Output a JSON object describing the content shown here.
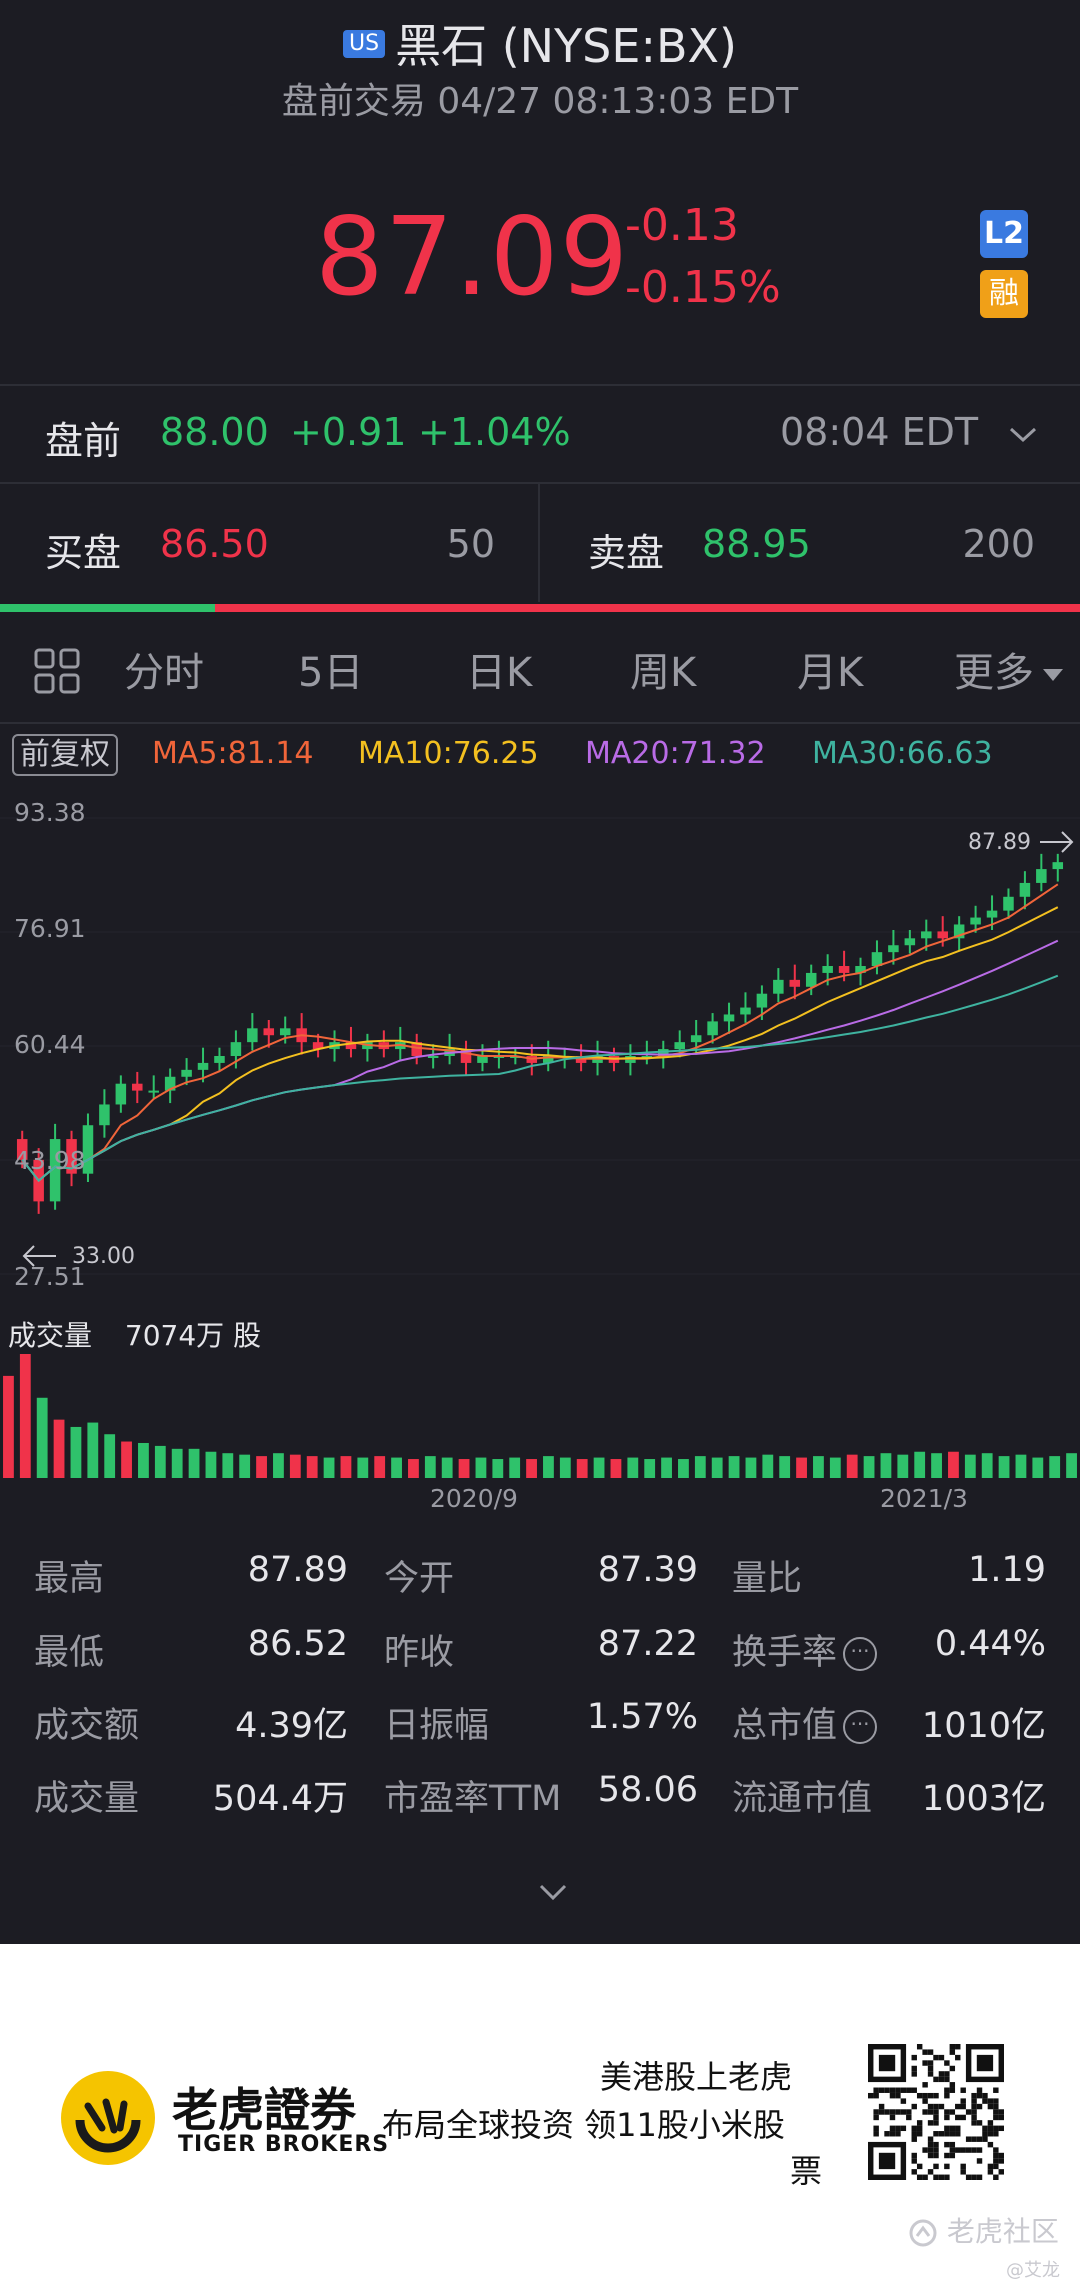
{
  "header": {
    "market_badge": "US",
    "title": "黑石 (NYSE:BX)",
    "subtitle": "盘前交易 04/27 08:13:03 EDT"
  },
  "quote": {
    "price": "87.09",
    "change": "-0.13",
    "change_pct": "-0.15%",
    "badge_l2": "L2",
    "badge_margin": "融"
  },
  "premarket": {
    "label": "盘前",
    "price": "88.00",
    "change": "+0.91",
    "change_pct": "+1.04%",
    "time": "08:04 EDT"
  },
  "orderbook": {
    "bid_label": "买盘",
    "bid_price": "86.50",
    "bid_size": "50",
    "ask_label": "卖盘",
    "ask_price": "88.95",
    "ask_size": "200",
    "bid_ratio": 0.2
  },
  "tabs": [
    "分时",
    "5日",
    "日K",
    "周K",
    "月K",
    "更多"
  ],
  "active_tab": "周K",
  "indicators": {
    "adjust": "前复权",
    "ma5": "MA5:81.14",
    "ma10": "MA10:76.25",
    "ma20": "MA20:71.32",
    "ma30": "MA30:66.63"
  },
  "colors": {
    "up": "#2fc26b",
    "down": "#f0334a",
    "ma5": "#f0653a",
    "ma10": "#f3c020",
    "ma20": "#b96be6",
    "ma30": "#3fb3a0",
    "accent": "#f3c020"
  },
  "chart_data": {
    "type": "candlestick",
    "y_ticks": [
      "93.38",
      "76.91",
      "60.44",
      "43.98",
      "27.51"
    ],
    "ylim": [
      27.51,
      93.38
    ],
    "high_marker": "87.89",
    "low_marker": "33.00",
    "x_ticks": [
      "2020/9",
      "2021/3"
    ],
    "closes": [
      44,
      38,
      47,
      42,
      49,
      52,
      55,
      54,
      54,
      56,
      57,
      58,
      59,
      61,
      63,
      62,
      63,
      61,
      60,
      61,
      60,
      61,
      60,
      61,
      59,
      59,
      60,
      58,
      59,
      59,
      59,
      58,
      59,
      59,
      58,
      59,
      58,
      59,
      59,
      60,
      61,
      62,
      64,
      65,
      66,
      68,
      70,
      69,
      71,
      72,
      71,
      72,
      74,
      75,
      76,
      77,
      76,
      78,
      79,
      80,
      82,
      84,
      86,
      87
    ],
    "volume_label": "成交量",
    "volume_value": "7074万 股",
    "volumes": [
      70,
      85,
      55,
      40,
      35,
      38,
      30,
      25,
      24,
      22,
      20,
      20,
      18,
      17,
      16,
      15,
      17,
      16,
      15,
      14,
      15,
      14,
      15,
      14,
      13,
      15,
      14,
      13,
      14,
      13,
      14,
      13,
      15,
      14,
      13,
      14,
      13,
      14,
      13,
      14,
      13,
      15,
      14,
      15,
      14,
      16,
      15,
      14,
      15,
      14,
      16,
      15,
      17,
      16,
      18,
      17,
      18,
      16,
      17,
      15,
      16,
      14,
      15,
      17
    ]
  },
  "stats": [
    {
      "label": "最高",
      "value": "87.89"
    },
    {
      "label": "今开",
      "value": "87.39"
    },
    {
      "label": "量比",
      "value": "1.19"
    },
    {
      "label": "最低",
      "value": "86.52"
    },
    {
      "label": "昨收",
      "value": "87.22"
    },
    {
      "label": "换手率",
      "value": "0.44%"
    },
    {
      "label": "成交额",
      "value": "4.39亿"
    },
    {
      "label": "日振幅",
      "value": "1.57%"
    },
    {
      "label": "总市值",
      "value": "1010亿"
    },
    {
      "label": "成交量",
      "value": "504.4万"
    },
    {
      "label": "市盈率TTM",
      "value": "58.06"
    },
    {
      "label": "流通市值",
      "value": "1003亿"
    }
  ],
  "footer": {
    "brand_cn": "老虎證券",
    "brand_en": "TIGER BROKERS",
    "slogan1": "美港股上老虎",
    "slogan2": "布局全球投资 领11股小米股",
    "slogan3": "票",
    "watermark": "老虎社区",
    "author": "@艾龙"
  }
}
